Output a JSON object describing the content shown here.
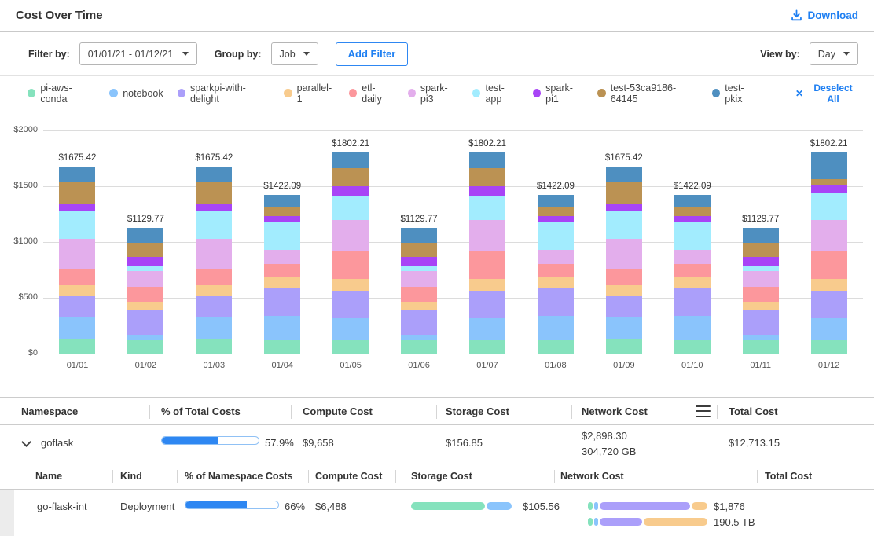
{
  "header": {
    "title": "Cost Over Time",
    "download_label": "Download"
  },
  "filter_bar": {
    "filter_by_label": "Filter by:",
    "date_range_value": "01/01/21 - 01/12/21",
    "group_by_label": "Group by:",
    "group_by_value": "Job",
    "add_filter_label": "Add Filter",
    "view_by_label": "View by:",
    "view_by_value": "Day"
  },
  "legend": {
    "items": [
      {
        "label": "pi-aws-conda",
        "color": "#85e2bd"
      },
      {
        "label": "notebook",
        "color": "#8ac4fc"
      },
      {
        "label": "sparkpi-with-delight",
        "color": "#ab9ffa"
      },
      {
        "label": "parallel-1",
        "color": "#f8cb8d"
      },
      {
        "label": "etl-daily",
        "color": "#fc979c"
      },
      {
        "label": "spark-pi3",
        "color": "#e3aeec"
      },
      {
        "label": "test-app",
        "color": "#a2ecfe"
      },
      {
        "label": "spark-pi1",
        "color": "#a844f6"
      },
      {
        "label": "test-53ca9186-64145",
        "color": "#bb9253"
      },
      {
        "label": "test-pkix",
        "color": "#4e8fc0"
      }
    ],
    "deselect_all_label": "Deselect All",
    "deselect_icon": "✕"
  },
  "chart_data": {
    "type": "bar",
    "stacked": true,
    "title": "Cost Over Time",
    "xlabel": "",
    "ylabel": "",
    "ylim": [
      0,
      2000
    ],
    "grid": true,
    "legend_position": "top",
    "categories": [
      "01/01",
      "01/02",
      "01/03",
      "01/04",
      "01/05",
      "01/06",
      "01/07",
      "01/08",
      "01/09",
      "01/10",
      "01/11",
      "01/12"
    ],
    "y_ticks": [
      {
        "label": "$0",
        "value": 0
      },
      {
        "label": "$500",
        "value": 500
      },
      {
        "label": "$1000",
        "value": 1000
      },
      {
        "label": "$1500",
        "value": 1500
      },
      {
        "label": "$2000",
        "value": 2000
      }
    ],
    "totals": [
      1675.42,
      1129.77,
      1675.42,
      1422.09,
      1802.21,
      1129.77,
      1802.21,
      1422.09,
      1675.42,
      1422.09,
      1129.77,
      1802.21
    ],
    "total_labels": [
      "$1675.42",
      "$1129.77",
      "$1675.42",
      "$1422.09",
      "$1802.21",
      "$1129.77",
      "$1802.21",
      "$1422.09",
      "$1675.42",
      "$1422.09",
      "$1129.77",
      "$1802.21"
    ],
    "series": [
      {
        "name": "pi-aws-conda",
        "color": "#85e2bd",
        "values": [
          131,
          127,
          131,
          125,
          127,
          127,
          127,
          125,
          131,
          125,
          127,
          127
        ]
      },
      {
        "name": "notebook",
        "color": "#8ac4fc",
        "values": [
          203,
          42,
          203,
          215,
          199,
          42,
          199,
          215,
          203,
          215,
          42,
          199
        ]
      },
      {
        "name": "sparkpi-with-delight",
        "color": "#ab9ffa",
        "values": [
          187,
          217,
          187,
          245,
          235,
          217,
          235,
          245,
          187,
          245,
          217,
          235
        ]
      },
      {
        "name": "parallel-1",
        "color": "#f8cb8d",
        "values": [
          97,
          82,
          97,
          98,
          106,
          82,
          106,
          98,
          97,
          98,
          82,
          106
        ]
      },
      {
        "name": "etl-daily",
        "color": "#fc979c",
        "values": [
          146,
          129,
          146,
          122,
          258,
          129,
          258,
          122,
          146,
          122,
          129,
          258
        ]
      },
      {
        "name": "spark-pi3",
        "color": "#e3aeec",
        "values": [
          267,
          141,
          267,
          122,
          270,
          141,
          270,
          122,
          267,
          122,
          141,
          270
        ]
      },
      {
        "name": "test-app",
        "color": "#a2ecfe",
        "values": [
          247,
          47,
          247,
          257,
          211,
          47,
          211,
          257,
          247,
          257,
          47,
          240
        ]
      },
      {
        "name": "spark-pi1",
        "color": "#a844f6",
        "values": [
          68,
          82,
          68,
          49,
          94,
          82,
          94,
          49,
          68,
          49,
          82,
          70
        ]
      },
      {
        "name": "test-53ca9186-64145",
        "color": "#bb9253",
        "values": [
          195,
          125,
          195,
          86,
          164,
          125,
          164,
          86,
          195,
          86,
          125,
          60
        ]
      },
      {
        "name": "test-pkix",
        "color": "#4e8fc0",
        "values": [
          134.42,
          137.77,
          134.42,
          103.09,
          138.21,
          137.77,
          138.21,
          103.09,
          134.42,
          103.09,
          137.77,
          237.21
        ]
      }
    ]
  },
  "table": {
    "columns": {
      "namespace": "Namespace",
      "pct_total": "% of Total Costs",
      "compute": "Compute Cost",
      "storage": "Storage Cost",
      "network": "Network  Cost",
      "total": "Total Cost"
    },
    "namespace_row": {
      "name": "goflask",
      "pct_label": "57.9%",
      "pct_value": 57.9,
      "compute_cost": "$9,658",
      "storage_cost": "$156.85",
      "network_cost": "$2,898.30",
      "network_usage": "304,720 GB",
      "total_cost": "$12,713.15"
    },
    "child_columns": {
      "name": "Name",
      "kind": "Kind",
      "pct_ns": "% of Namespace Costs",
      "compute": "Compute Cost",
      "storage": "Storage Cost",
      "network": "Network Cost",
      "total": "Total Cost"
    },
    "child_row": {
      "name": "go-flask-int",
      "kind": "Deployment",
      "pct_label": "66%",
      "pct_value": 66,
      "compute_cost": "$6,488",
      "storage_cost": "$105.56",
      "storage_bar": [
        {
          "color": "#85e2bd",
          "pct": 72
        },
        {
          "color": "#8ac4fc",
          "pct": 25
        }
      ],
      "network_cost": "$1,876",
      "network_usage": "190.5 TB",
      "network_bar_cost": [
        {
          "color": "#85e2bd",
          "pct": 4
        },
        {
          "color": "#8ac4fc",
          "pct": 3
        },
        {
          "color": "#ab9ffa",
          "pct": 77
        },
        {
          "color": "#f8cb8d",
          "pct": 13
        }
      ],
      "network_bar_usage": [
        {
          "color": "#85e2bd",
          "pct": 4
        },
        {
          "color": "#8ac4fc",
          "pct": 3
        },
        {
          "color": "#ab9ffa",
          "pct": 36
        },
        {
          "color": "#f8cb8d",
          "pct": 54
        }
      ]
    }
  },
  "colors": {
    "accent_blue": "#1e7ff2",
    "progress_fill": "#2e87f2"
  }
}
